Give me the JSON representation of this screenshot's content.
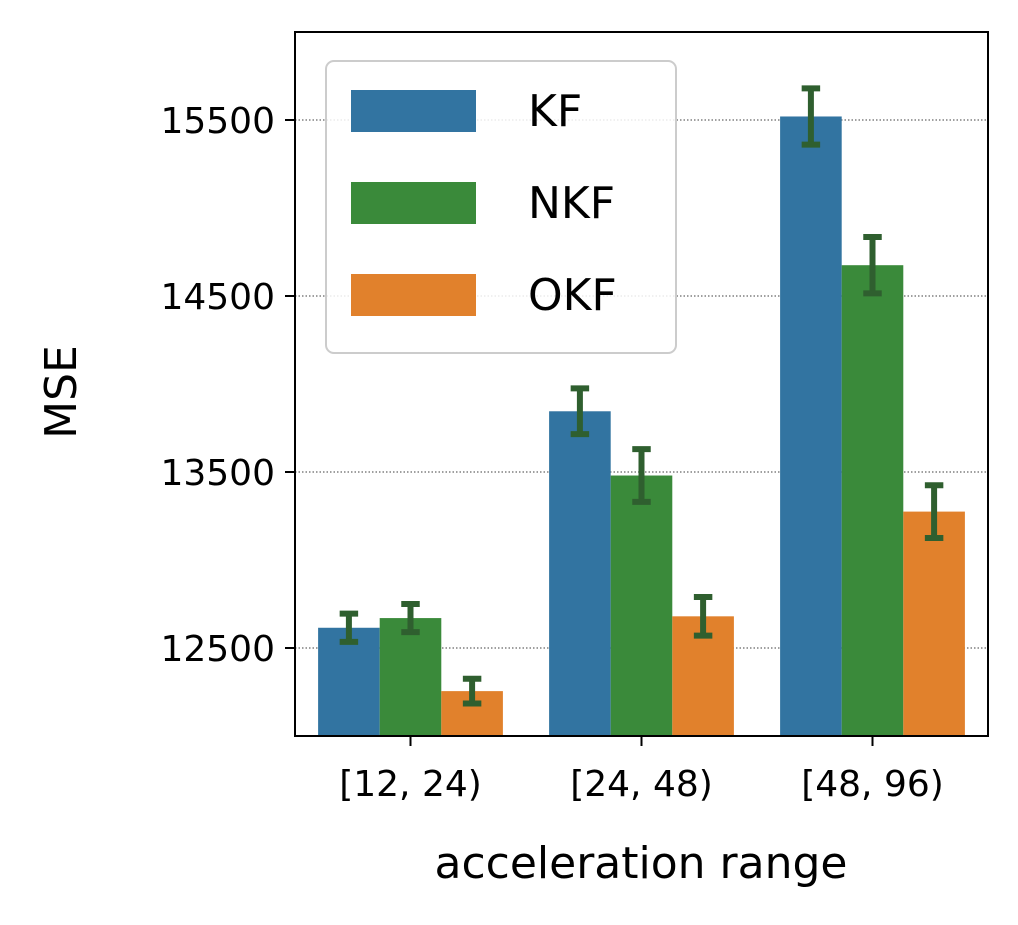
{
  "chart_data": {
    "type": "bar",
    "categories": [
      "[12, 24)",
      "[24, 48)",
      "[48, 96)"
    ],
    "series": [
      {
        "name": "KF",
        "color": "#3274a1",
        "values": [
          12615,
          13845,
          15520
        ],
        "error": [
          80,
          130,
          160
        ]
      },
      {
        "name": "NKF",
        "color": "#3a8a3a",
        "values": [
          12670,
          13480,
          14675
        ],
        "error": [
          80,
          150,
          160
        ]
      },
      {
        "name": "OKF",
        "color": "#e1812c",
        "values": [
          12255,
          12680,
          13275
        ],
        "error": [
          70,
          110,
          150
        ]
      }
    ],
    "xlabel": "acceleration range",
    "ylabel": "MSE",
    "ylim": [
      12000,
      16000
    ],
    "yticks": [
      12500,
      13500,
      14500,
      15500
    ],
    "ytick_labels": [
      "12500",
      "13500",
      "14500",
      "15500"
    ],
    "grid": "horizontal-dotted",
    "legend_position": "top-left",
    "errorbar_color": "#2f5f2f"
  }
}
